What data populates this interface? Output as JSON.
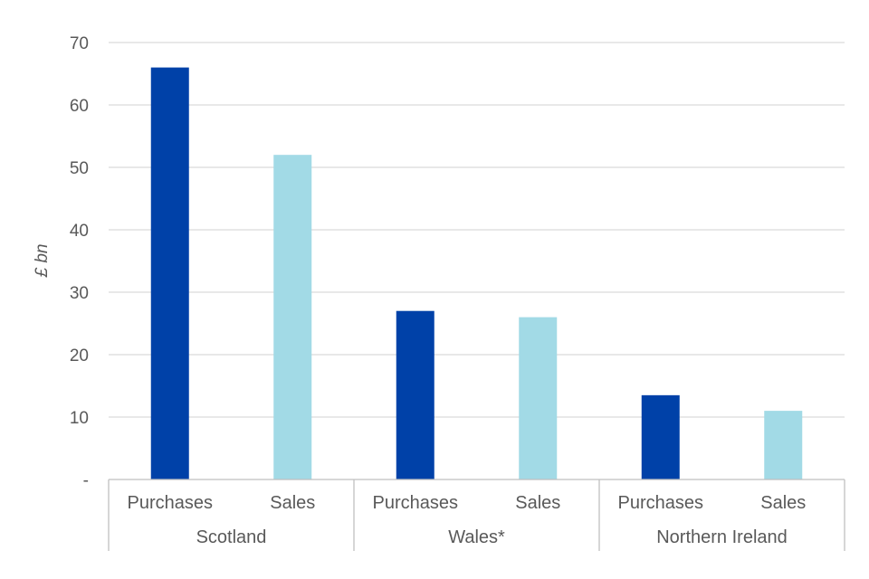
{
  "chart_data": {
    "type": "bar",
    "title": "",
    "ylabel": "£ bn",
    "xlabel": "",
    "ylim": [
      0,
      70
    ],
    "yticks": [
      {
        "value": 0,
        "label": "-"
      },
      {
        "value": 10,
        "label": "10"
      },
      {
        "value": 20,
        "label": "20"
      },
      {
        "value": 30,
        "label": "30"
      },
      {
        "value": 40,
        "label": "40"
      },
      {
        "value": 50,
        "label": "50"
      },
      {
        "value": 60,
        "label": "60"
      },
      {
        "value": 70,
        "label": "70"
      }
    ],
    "grid": true,
    "colors": {
      "Purchases": "#0041a8",
      "Sales": "#a2dae6"
    },
    "groups": [
      {
        "name": "Scotland",
        "bars": [
          {
            "label": "Purchases",
            "value": 66
          },
          {
            "label": "Sales",
            "value": 52
          }
        ]
      },
      {
        "name": "Wales*",
        "bars": [
          {
            "label": "Purchases",
            "value": 27
          },
          {
            "label": "Sales",
            "value": 26
          }
        ]
      },
      {
        "name": "Northern Ireland",
        "bars": [
          {
            "label": "Purchases",
            "value": 13.5
          },
          {
            "label": "Sales",
            "value": 11
          }
        ]
      }
    ]
  }
}
